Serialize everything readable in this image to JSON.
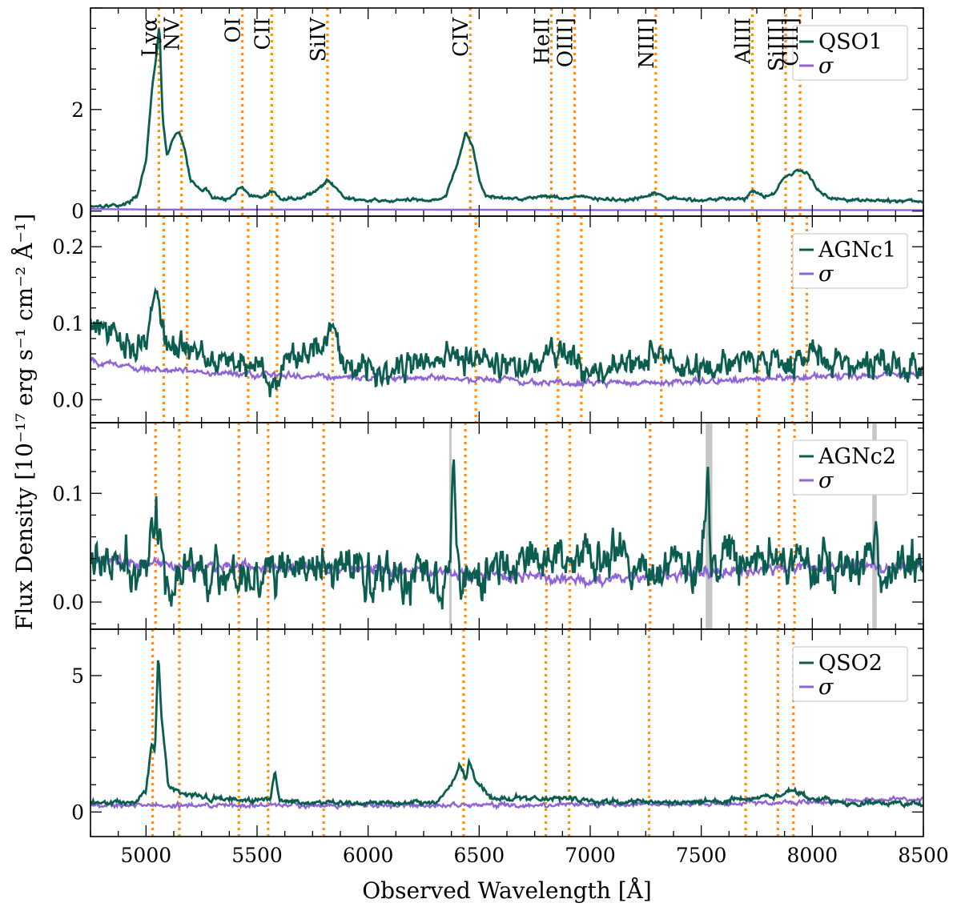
{
  "chart_data": {
    "type": "line",
    "xlabel": "Observed Wavelength [Å]",
    "ylabel": "Flux Density [10⁻¹⁷ erg s⁻¹ cm⁻² Å⁻¹]",
    "xlim": [
      4750,
      8500
    ],
    "x_ticks": [
      "5000",
      "5500",
      "6000",
      "6500",
      "7000",
      "7500",
      "8000",
      "8500"
    ],
    "x_tick_values": [
      5000,
      5500,
      6000,
      6500,
      7000,
      7500,
      8000,
      8500
    ],
    "colors": {
      "flux": "#0b5e4f",
      "sigma": "#8f64d6",
      "lines": "#ff8c1a",
      "masks": "#b3b3b3"
    },
    "line_names": [
      "Lyα",
      "NV",
      "OI",
      "CII",
      "SiIV",
      "CIV",
      "HeII",
      "OIII]",
      "NIII]",
      "AlIII",
      "SiIII]",
      "CIII]"
    ],
    "panels": [
      {
        "legend": "QSO1",
        "sigma_legend": "σ",
        "ylim": [
          -0.1,
          4.0
        ],
        "y_ticks": [
          "0",
          "2"
        ],
        "y_tick_values": [
          0,
          2
        ],
        "line_positions": [
          5058,
          5160,
          5434,
          5566,
          5817,
          6460,
          6825,
          6930,
          7295,
          7730,
          7880,
          7945
        ],
        "masks": [],
        "flux_points": [
          [
            4750,
            0.1
          ],
          [
            4900,
            0.12
          ],
          [
            4960,
            0.3
          ],
          [
            5000,
            1.0
          ],
          [
            5030,
            2.5
          ],
          [
            5048,
            3.1
          ],
          [
            5060,
            3.7
          ],
          [
            5075,
            1.8
          ],
          [
            5095,
            1.1
          ],
          [
            5130,
            1.5
          ],
          [
            5150,
            1.55
          ],
          [
            5175,
            1.2
          ],
          [
            5200,
            0.6
          ],
          [
            5250,
            0.4
          ],
          [
            5270,
            0.45
          ],
          [
            5300,
            0.25
          ],
          [
            5380,
            0.25
          ],
          [
            5430,
            0.5
          ],
          [
            5470,
            0.3
          ],
          [
            5520,
            0.25
          ],
          [
            5566,
            0.4
          ],
          [
            5600,
            0.25
          ],
          [
            5700,
            0.25
          ],
          [
            5780,
            0.45
          ],
          [
            5817,
            0.6
          ],
          [
            5860,
            0.45
          ],
          [
            5900,
            0.25
          ],
          [
            6000,
            0.2
          ],
          [
            6100,
            0.2
          ],
          [
            6200,
            0.22
          ],
          [
            6300,
            0.22
          ],
          [
            6350,
            0.3
          ],
          [
            6400,
            0.9
          ],
          [
            6440,
            1.55
          ],
          [
            6470,
            1.3
          ],
          [
            6500,
            0.6
          ],
          [
            6530,
            0.3
          ],
          [
            6600,
            0.25
          ],
          [
            6700,
            0.25
          ],
          [
            6800,
            0.3
          ],
          [
            6900,
            0.25
          ],
          [
            6950,
            0.3
          ],
          [
            7000,
            0.25
          ],
          [
            7100,
            0.22
          ],
          [
            7200,
            0.22
          ],
          [
            7280,
            0.32
          ],
          [
            7300,
            0.35
          ],
          [
            7350,
            0.25
          ],
          [
            7500,
            0.22
          ],
          [
            7600,
            0.24
          ],
          [
            7700,
            0.25
          ],
          [
            7730,
            0.4
          ],
          [
            7780,
            0.3
          ],
          [
            7830,
            0.35
          ],
          [
            7860,
            0.6
          ],
          [
            7900,
            0.72
          ],
          [
            7940,
            0.8
          ],
          [
            7980,
            0.75
          ],
          [
            8020,
            0.45
          ],
          [
            8080,
            0.25
          ],
          [
            8200,
            0.22
          ],
          [
            8350,
            0.2
          ],
          [
            8500,
            0.2
          ]
        ],
        "flux_noise": 0.03,
        "sigma_points": [
          [
            4750,
            0.04
          ],
          [
            5000,
            0.03
          ],
          [
            6000,
            0.03
          ],
          [
            7000,
            0.02
          ],
          [
            8500,
            0.02
          ]
        ],
        "sigma_noise": 0.0
      },
      {
        "legend": "AGNc1",
        "sigma_legend": "σ",
        "ylim": [
          -0.03,
          0.24
        ],
        "y_ticks": [
          "0.0",
          "0.1",
          "0.2"
        ],
        "y_tick_values": [
          0.0,
          0.1,
          0.2
        ],
        "line_positions": [
          5080,
          5185,
          5460,
          5590,
          5840,
          6485,
          6855,
          6960,
          7320,
          7760,
          7910,
          7975
        ],
        "masks": [],
        "flux_points": [
          [
            4750,
            0.1
          ],
          [
            4800,
            0.09
          ],
          [
            4900,
            0.075
          ],
          [
            4950,
            0.07
          ],
          [
            5000,
            0.08
          ],
          [
            5040,
            0.14
          ],
          [
            5060,
            0.11
          ],
          [
            5100,
            0.07
          ],
          [
            5200,
            0.065
          ],
          [
            5300,
            0.06
          ],
          [
            5400,
            0.05
          ],
          [
            5500,
            0.045
          ],
          [
            5580,
            0.02
          ],
          [
            5650,
            0.05
          ],
          [
            5800,
            0.08
          ],
          [
            5840,
            0.095
          ],
          [
            5900,
            0.05
          ],
          [
            6000,
            0.04
          ],
          [
            6200,
            0.045
          ],
          [
            6300,
            0.05
          ],
          [
            6400,
            0.06
          ],
          [
            6480,
            0.06
          ],
          [
            6550,
            0.05
          ],
          [
            6700,
            0.04
          ],
          [
            6850,
            0.06
          ],
          [
            6900,
            0.055
          ],
          [
            7000,
            0.035
          ],
          [
            7100,
            0.04
          ],
          [
            7200,
            0.05
          ],
          [
            7300,
            0.06
          ],
          [
            7400,
            0.04
          ],
          [
            7500,
            0.035
          ],
          [
            7600,
            0.04
          ],
          [
            7700,
            0.06
          ],
          [
            7800,
            0.05
          ],
          [
            7900,
            0.05
          ],
          [
            8000,
            0.06
          ],
          [
            8100,
            0.05
          ],
          [
            8200,
            0.04
          ],
          [
            8300,
            0.05
          ],
          [
            8400,
            0.04
          ],
          [
            8500,
            0.04
          ]
        ],
        "flux_noise": 0.018,
        "sigma_points": [
          [
            4750,
            0.05
          ],
          [
            5000,
            0.04
          ],
          [
            5500,
            0.032
          ],
          [
            6000,
            0.03
          ],
          [
            6500,
            0.027
          ],
          [
            7000,
            0.022
          ],
          [
            7500,
            0.023
          ],
          [
            8000,
            0.03
          ],
          [
            8500,
            0.034
          ]
        ],
        "sigma_noise": 0.004
      },
      {
        "legend": "AGNc2",
        "sigma_legend": "σ",
        "ylim": [
          -0.025,
          0.165
        ],
        "y_ticks": [
          "0.0",
          "0.1"
        ],
        "y_tick_values": [
          0.0,
          0.1
        ],
        "line_positions": [
          5043,
          5150,
          5418,
          5550,
          5800,
          6438,
          6803,
          6908,
          7270,
          7705,
          7850,
          7920
        ],
        "masks": [
          [
            6365,
            6375
          ],
          [
            7520,
            7550
          ],
          [
            8270,
            8290
          ]
        ],
        "flux_points": [
          [
            4750,
            0.04
          ],
          [
            4900,
            0.03
          ],
          [
            5000,
            0.03
          ],
          [
            5040,
            0.06
          ],
          [
            5045,
            0.1
          ],
          [
            5055,
            0.05
          ],
          [
            5100,
            0.02
          ],
          [
            5200,
            0.03
          ],
          [
            5400,
            0.03
          ],
          [
            5500,
            0.025
          ],
          [
            5700,
            0.03
          ],
          [
            5900,
            0.03
          ],
          [
            6100,
            0.025
          ],
          [
            6300,
            0.025
          ],
          [
            6370,
            0.04
          ],
          [
            6385,
            0.13
          ],
          [
            6395,
            0.06
          ],
          [
            6420,
            0.03
          ],
          [
            6600,
            0.03
          ],
          [
            6800,
            0.04
          ],
          [
            7000,
            0.04
          ],
          [
            7200,
            0.035
          ],
          [
            7400,
            0.03
          ],
          [
            7500,
            0.035
          ],
          [
            7530,
            0.12
          ],
          [
            7545,
            0.04
          ],
          [
            7700,
            0.04
          ],
          [
            7800,
            0.04
          ],
          [
            8000,
            0.03
          ],
          [
            8200,
            0.03
          ],
          [
            8275,
            0.04
          ],
          [
            8285,
            0.09
          ],
          [
            8300,
            0.03
          ],
          [
            8400,
            0.035
          ],
          [
            8500,
            0.035
          ]
        ],
        "flux_noise": 0.02,
        "sigma_points": [
          [
            4750,
            0.04
          ],
          [
            5000,
            0.035
          ],
          [
            5500,
            0.032
          ],
          [
            6000,
            0.03
          ],
          [
            6500,
            0.025
          ],
          [
            7000,
            0.02
          ],
          [
            7500,
            0.028
          ],
          [
            8000,
            0.032
          ],
          [
            8500,
            0.033
          ]
        ],
        "sigma_noise": 0.005
      },
      {
        "legend": "QSO2",
        "sigma_legend": "σ",
        "ylim": [
          -0.9,
          6.7
        ],
        "y_ticks": [
          "0",
          "5"
        ],
        "y_tick_values": [
          0,
          5
        ],
        "line_positions": [
          5030,
          5150,
          5418,
          5550,
          5800,
          6430,
          6800,
          6905,
          7265,
          7700,
          7845,
          7915
        ],
        "masks": [],
        "flux_points": [
          [
            4750,
            0.3
          ],
          [
            4950,
            0.35
          ],
          [
            5000,
            0.8
          ],
          [
            5025,
            2.5
          ],
          [
            5040,
            2.2
          ],
          [
            5055,
            5.8
          ],
          [
            5070,
            3.5
          ],
          [
            5100,
            1.0
          ],
          [
            5150,
            0.7
          ],
          [
            5300,
            0.5
          ],
          [
            5500,
            0.4
          ],
          [
            5560,
            0.5
          ],
          [
            5580,
            1.5
          ],
          [
            5600,
            0.4
          ],
          [
            5800,
            0.35
          ],
          [
            6000,
            0.3
          ],
          [
            6300,
            0.35
          ],
          [
            6380,
            1.0
          ],
          [
            6410,
            1.8
          ],
          [
            6440,
            1.2
          ],
          [
            6455,
            1.9
          ],
          [
            6480,
            1.2
          ],
          [
            6550,
            0.5
          ],
          [
            6800,
            0.5
          ],
          [
            6900,
            0.5
          ],
          [
            7000,
            0.4
          ],
          [
            7300,
            0.35
          ],
          [
            7600,
            0.4
          ],
          [
            7850,
            0.6
          ],
          [
            7900,
            0.8
          ],
          [
            7950,
            0.7
          ],
          [
            8000,
            0.45
          ],
          [
            8200,
            0.35
          ],
          [
            8500,
            0.3
          ]
        ],
        "flux_noise": 0.09,
        "sigma_points": [
          [
            4750,
            0.25
          ],
          [
            5500,
            0.25
          ],
          [
            6500,
            0.25
          ],
          [
            7500,
            0.3
          ],
          [
            8200,
            0.4
          ],
          [
            8350,
            0.5
          ],
          [
            8500,
            0.45
          ]
        ],
        "sigma_noise": 0.08
      }
    ]
  }
}
